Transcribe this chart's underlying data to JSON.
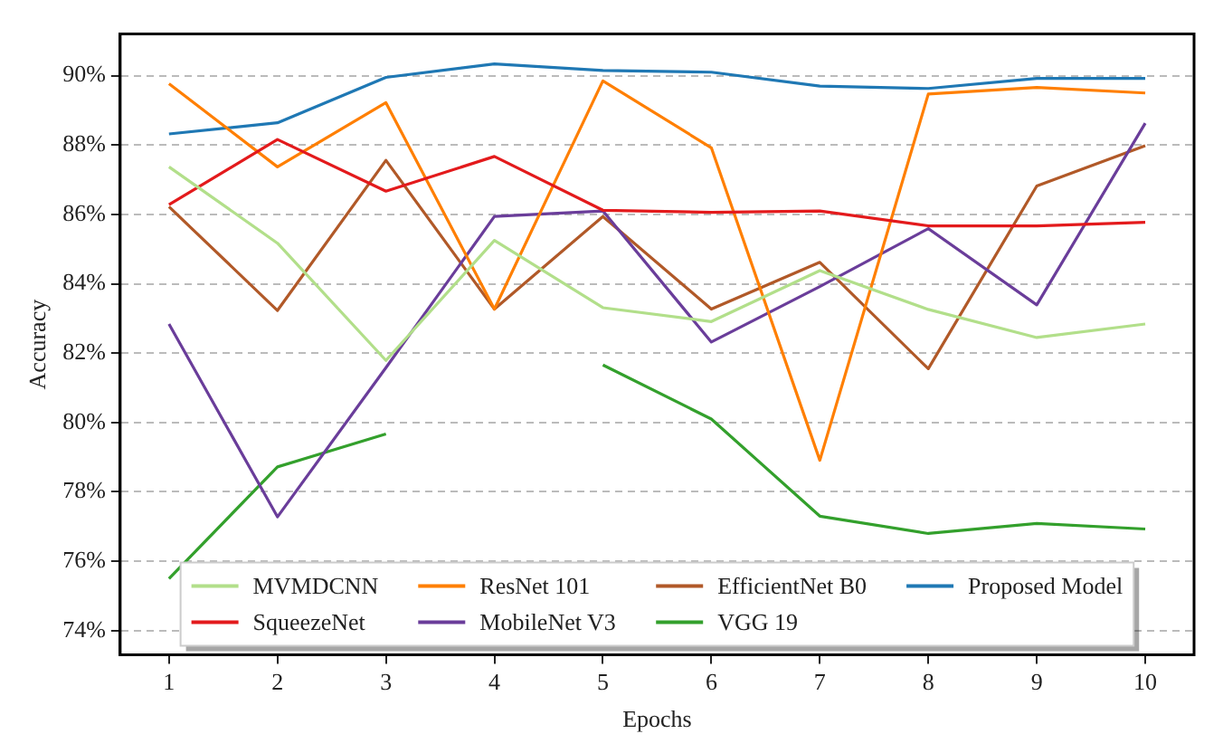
{
  "chart_data": {
    "type": "line",
    "xlabel": "Epochs",
    "ylabel": "Accuracy",
    "x": [
      1,
      2,
      3,
      4,
      5,
      6,
      7,
      8,
      9,
      10
    ],
    "xlim": [
      0.55,
      10.45
    ],
    "xticks": [
      1,
      2,
      3,
      4,
      5,
      6,
      7,
      8,
      9,
      10
    ],
    "ylim": [
      73.3,
      91.2
    ],
    "yticks": [
      {
        "value": 74,
        "label": "74%"
      },
      {
        "value": 76,
        "label": "76%"
      },
      {
        "value": 78,
        "label": "78%"
      },
      {
        "value": 80,
        "label": "80%"
      },
      {
        "value": 82,
        "label": "82%"
      },
      {
        "value": 84,
        "label": "84%"
      },
      {
        "value": 86,
        "label": "86%"
      },
      {
        "value": 88,
        "label": "88%"
      },
      {
        "value": 90,
        "label": "90%"
      }
    ],
    "grid": "y",
    "legend": "bottom",
    "marker": "none",
    "line_style": "solid",
    "series": [
      {
        "name": "MVMDCNN",
        "color": "#b2df8a",
        "values": [
          87.37,
          85.17,
          81.79,
          85.25,
          83.31,
          82.91,
          84.38,
          83.26,
          82.45,
          82.84
        ]
      },
      {
        "name": "SqueezeNet",
        "color": "#e31a1c",
        "values": [
          86.28,
          88.16,
          86.67,
          87.67,
          86.12,
          86.06,
          86.1,
          85.67,
          85.67,
          85.77
        ]
      },
      {
        "name": "ResNet 101",
        "color": "#ff7f00",
        "values": [
          89.77,
          87.37,
          89.22,
          83.27,
          89.85,
          87.92,
          78.91,
          89.47,
          89.66,
          89.5
        ]
      },
      {
        "name": "MobileNet V3",
        "color": "#6a3d9a",
        "values": [
          82.84,
          77.28,
          81.58,
          85.94,
          86.1,
          82.32,
          83.92,
          85.59,
          83.39,
          88.63
        ]
      },
      {
        "name": "EfficientNet B0",
        "color": "#b15928",
        "values": [
          86.22,
          83.23,
          87.56,
          83.27,
          85.94,
          83.27,
          84.62,
          81.55,
          86.82,
          87.98
        ]
      },
      {
        "name": "VGG 19",
        "color": "#33a02c",
        "values": [
          75.5,
          78.72,
          79.67,
          null,
          81.66,
          80.1,
          77.3,
          76.8,
          77.09,
          76.93
        ]
      },
      {
        "name": "Proposed Model",
        "color": "#1f78b4",
        "values": [
          88.32,
          88.64,
          89.95,
          90.34,
          90.15,
          90.1,
          89.7,
          89.63,
          89.92,
          89.92
        ]
      }
    ]
  }
}
